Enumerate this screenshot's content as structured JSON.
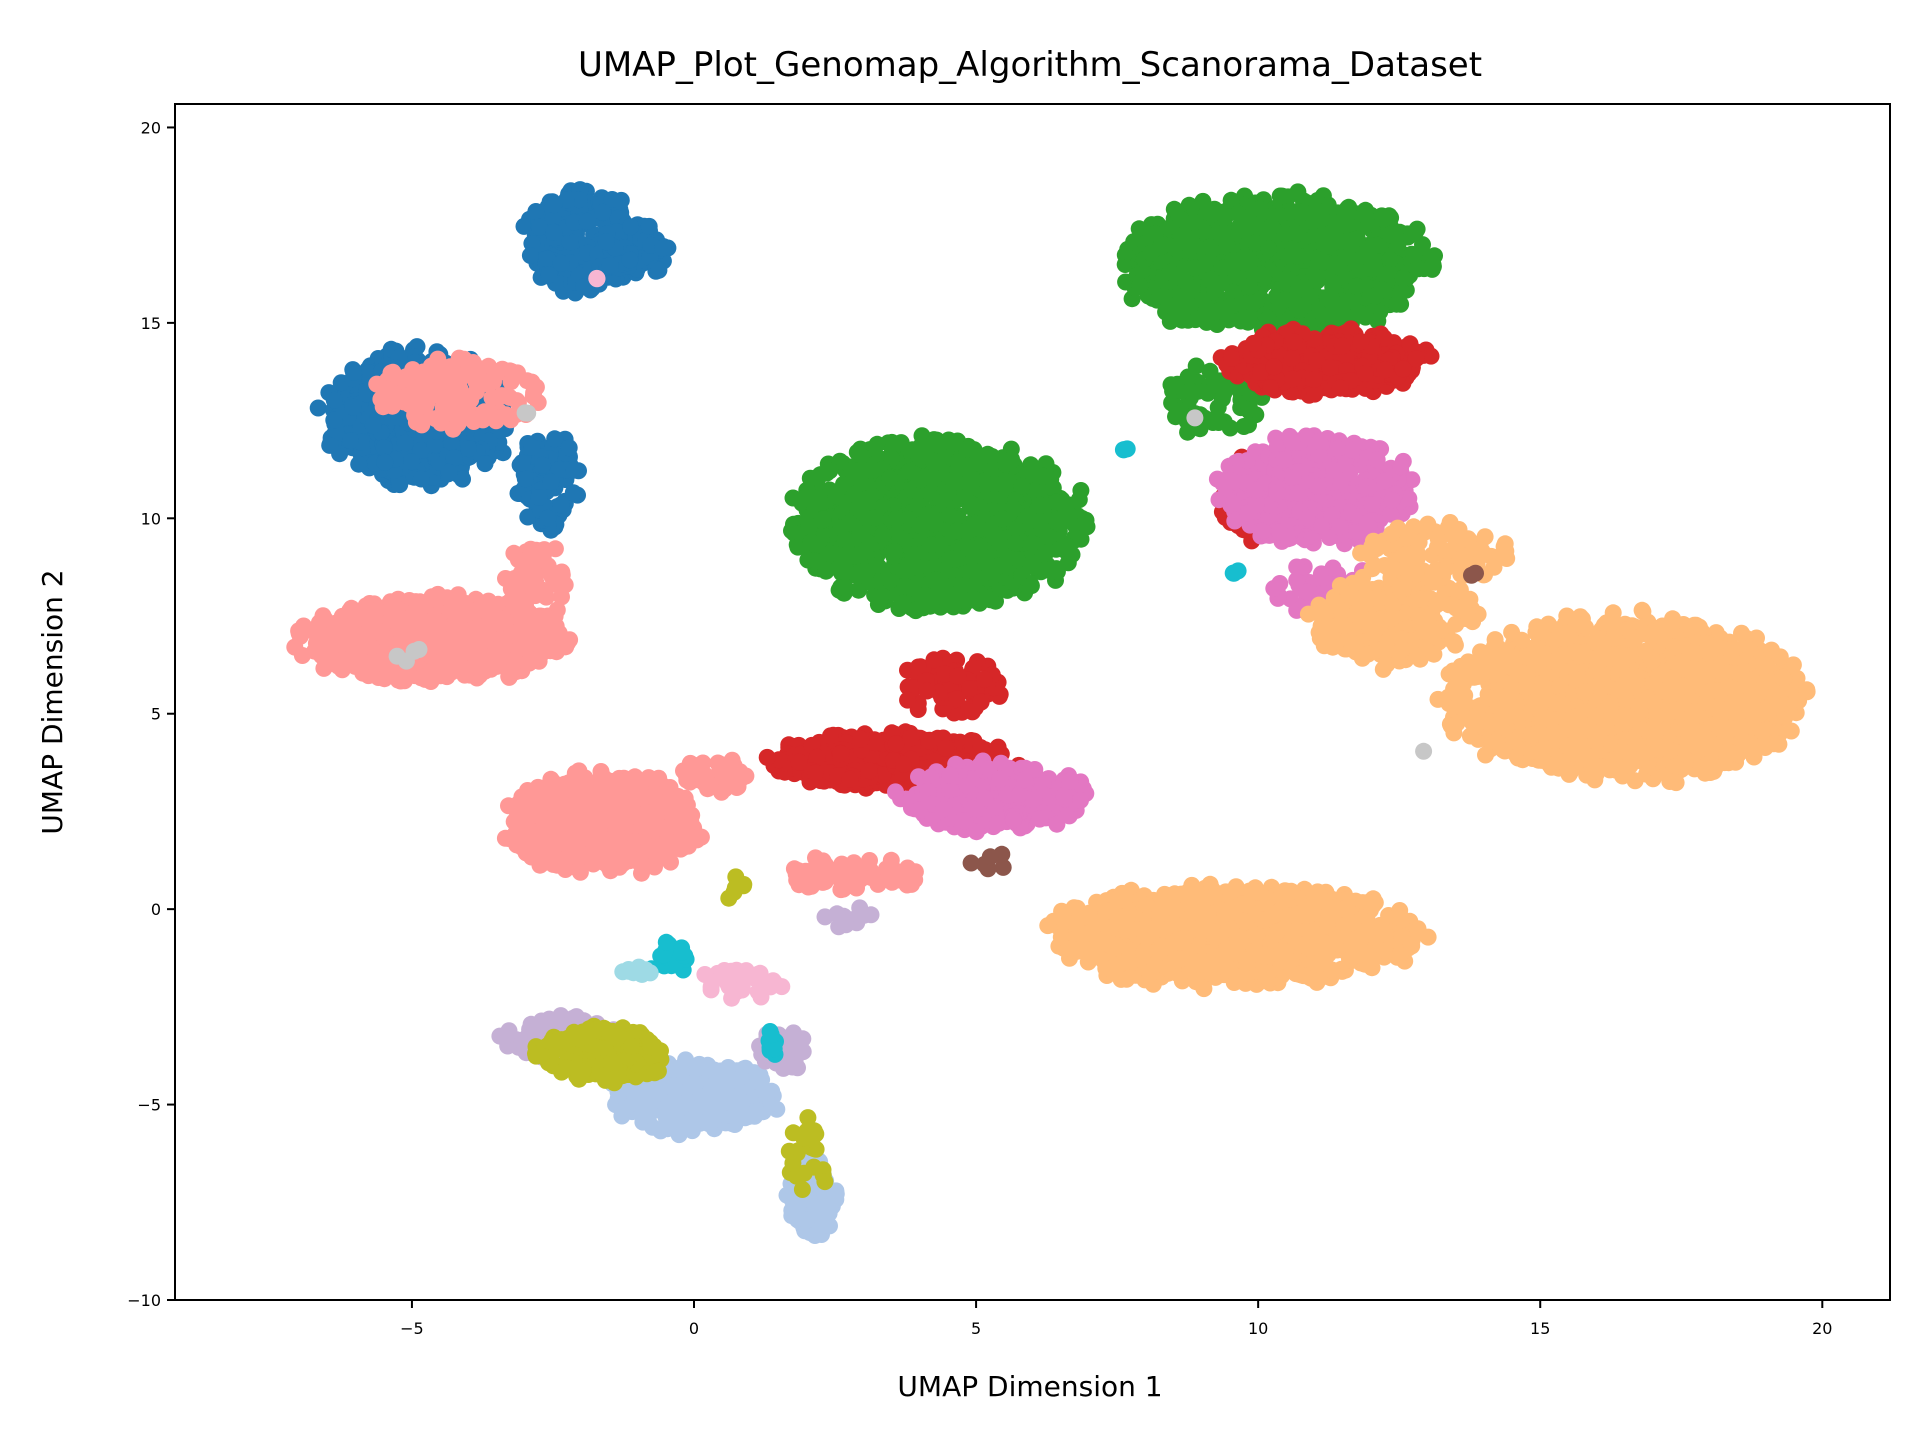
{
  "chart_data": {
    "type": "scatter",
    "title": "UMAP_Plot_Genomap_Algorithm_Scanorama_Dataset",
    "xlabel": "UMAP Dimension 1",
    "ylabel": "UMAP Dimension 2",
    "xlim": [
      -9.2,
      21.2
    ],
    "ylim": [
      -10,
      20.6
    ],
    "xticks": [
      -5,
      0,
      5,
      10,
      15,
      20
    ],
    "xtick_labels": [
      "−5",
      "0",
      "5",
      "10",
      "15",
      "20"
    ],
    "yticks": [
      -10,
      -5,
      0,
      5,
      10,
      15,
      20
    ],
    "ytick_labels": [
      "−10",
      "−5",
      "0",
      "5",
      "10",
      "15",
      "20"
    ],
    "grid": false,
    "legend": "none",
    "series": [
      {
        "color": "#1f77b4",
        "clusters": [
          {
            "cx": -4.9,
            "cy": 12.6,
            "rx": 1.8,
            "ry": 1.9,
            "n": 650
          },
          {
            "cx": -2.6,
            "cy": 11.0,
            "rx": 0.6,
            "ry": 1.4,
            "n": 90
          },
          {
            "cx": -2.0,
            "cy": 17.1,
            "rx": 1.1,
            "ry": 1.4,
            "n": 260
          },
          {
            "cx": -1.1,
            "cy": 16.8,
            "rx": 0.7,
            "ry": 0.8,
            "n": 90
          }
        ]
      },
      {
        "color": "#ff9896",
        "clusters": [
          {
            "cx": -4.6,
            "cy": 6.9,
            "rx": 2.6,
            "ry": 1.2,
            "n": 800
          },
          {
            "cx": -1.6,
            "cy": 2.2,
            "rx": 1.9,
            "ry": 1.4,
            "n": 550
          },
          {
            "cx": -4.2,
            "cy": 13.2,
            "rx": 1.6,
            "ry": 1.0,
            "n": 130
          },
          {
            "cx": -2.8,
            "cy": 8.3,
            "rx": 0.6,
            "ry": 1.2,
            "n": 60
          },
          {
            "cx": 2.8,
            "cy": 0.9,
            "rx": 1.4,
            "ry": 0.5,
            "n": 60
          },
          {
            "cx": 0.4,
            "cy": 3.4,
            "rx": 0.7,
            "ry": 0.5,
            "n": 40
          }
        ]
      },
      {
        "color": "#2ca02c",
        "clusters": [
          {
            "cx": 4.3,
            "cy": 9.8,
            "rx": 2.8,
            "ry": 2.4,
            "n": 1200
          },
          {
            "cx": 10.3,
            "cy": 16.5,
            "rx": 3.0,
            "ry": 1.9,
            "n": 950
          },
          {
            "cx": 9.2,
            "cy": 13.0,
            "rx": 1.0,
            "ry": 1.0,
            "n": 70
          }
        ]
      },
      {
        "color": "#d62728",
        "clusters": [
          {
            "cx": 3.5,
            "cy": 3.8,
            "rx": 2.3,
            "ry": 0.8,
            "n": 500
          },
          {
            "cx": 4.6,
            "cy": 5.7,
            "rx": 1.0,
            "ry": 0.8,
            "n": 90
          },
          {
            "cx": 11.2,
            "cy": 14.0,
            "rx": 2.0,
            "ry": 0.9,
            "n": 420
          },
          {
            "cx": 10.0,
            "cy": 10.5,
            "rx": 0.8,
            "ry": 1.2,
            "n": 60
          }
        ]
      },
      {
        "color": "#e377c2",
        "clusters": [
          {
            "cx": 5.3,
            "cy": 2.9,
            "rx": 1.8,
            "ry": 1.0,
            "n": 240
          },
          {
            "cx": 11.0,
            "cy": 10.7,
            "rx": 1.9,
            "ry": 1.5,
            "n": 500
          },
          {
            "cx": 11.2,
            "cy": 8.2,
            "rx": 1.2,
            "ry": 0.8,
            "n": 40
          }
        ]
      },
      {
        "color": "#ffbb78",
        "clusters": [
          {
            "cx": 16.5,
            "cy": 5.4,
            "rx": 3.4,
            "ry": 2.3,
            "n": 1500
          },
          {
            "cx": 12.4,
            "cy": 7.4,
            "rx": 1.6,
            "ry": 1.3,
            "n": 260
          },
          {
            "cx": 9.5,
            "cy": -0.7,
            "rx": 3.6,
            "ry": 1.4,
            "n": 1000
          },
          {
            "cx": 13.1,
            "cy": 9.1,
            "rx": 1.4,
            "ry": 0.9,
            "n": 100
          }
        ]
      },
      {
        "color": "#aec7e8",
        "clusters": [
          {
            "cx": 0.0,
            "cy": -4.8,
            "rx": 1.6,
            "ry": 1.0,
            "n": 300
          },
          {
            "cx": 2.1,
            "cy": -7.4,
            "rx": 0.5,
            "ry": 1.1,
            "n": 100
          }
        ]
      },
      {
        "color": "#c5b0d5",
        "clusters": [
          {
            "cx": -2.3,
            "cy": -3.3,
            "rx": 1.2,
            "ry": 0.6,
            "n": 150
          },
          {
            "cx": 1.6,
            "cy": -3.6,
            "rx": 0.5,
            "ry": 0.6,
            "n": 50
          },
          {
            "cx": 2.7,
            "cy": -0.2,
            "rx": 0.6,
            "ry": 0.3,
            "n": 12
          }
        ]
      },
      {
        "color": "#bcbd22",
        "clusters": [
          {
            "cx": -1.6,
            "cy": -3.7,
            "rx": 1.3,
            "ry": 0.8,
            "n": 220
          },
          {
            "cx": 2.0,
            "cy": -6.4,
            "rx": 0.4,
            "ry": 1.3,
            "n": 25
          },
          {
            "cx": 0.7,
            "cy": 0.5,
            "rx": 0.3,
            "ry": 0.5,
            "n": 6
          }
        ]
      },
      {
        "color": "#17becf",
        "clusters": [
          {
            "cx": -0.4,
            "cy": -1.2,
            "rx": 0.5,
            "ry": 0.5,
            "n": 16
          },
          {
            "cx": 1.4,
            "cy": -3.4,
            "rx": 0.1,
            "ry": 0.4,
            "n": 10
          },
          {
            "cx": 7.6,
            "cy": 11.8,
            "rx": 0.15,
            "ry": 0.1,
            "n": 3
          },
          {
            "cx": 9.6,
            "cy": 8.6,
            "rx": 0.1,
            "ry": 0.1,
            "n": 3
          }
        ]
      },
      {
        "color": "#f7b6d2",
        "clusters": [
          {
            "cx": 0.8,
            "cy": -1.9,
            "rx": 0.8,
            "ry": 0.4,
            "n": 40
          },
          {
            "cx": -1.7,
            "cy": 16.1,
            "rx": 0.1,
            "ry": 0.1,
            "n": 2
          }
        ]
      },
      {
        "color": "#9edae5",
        "clusters": [
          {
            "cx": -1.0,
            "cy": -1.6,
            "rx": 0.3,
            "ry": 0.2,
            "n": 10
          }
        ]
      },
      {
        "color": "#8c564b",
        "clusters": [
          {
            "cx": 5.2,
            "cy": 1.2,
            "rx": 0.7,
            "ry": 0.3,
            "n": 6
          },
          {
            "cx": 13.8,
            "cy": 8.6,
            "rx": 0.1,
            "ry": 0.1,
            "n": 2
          }
        ]
      },
      {
        "color": "#c7c7c7",
        "clusters": [
          {
            "cx": -5.0,
            "cy": 6.5,
            "rx": 0.4,
            "ry": 0.2,
            "n": 4
          },
          {
            "cx": -3.0,
            "cy": 12.7,
            "rx": 0.1,
            "ry": 0.1,
            "n": 2
          },
          {
            "cx": 12.9,
            "cy": 4.1,
            "rx": 0.1,
            "ry": 0.1,
            "n": 1
          },
          {
            "cx": 8.9,
            "cy": 12.6,
            "rx": 0.1,
            "ry": 0.1,
            "n": 1
          }
        ]
      }
    ]
  }
}
